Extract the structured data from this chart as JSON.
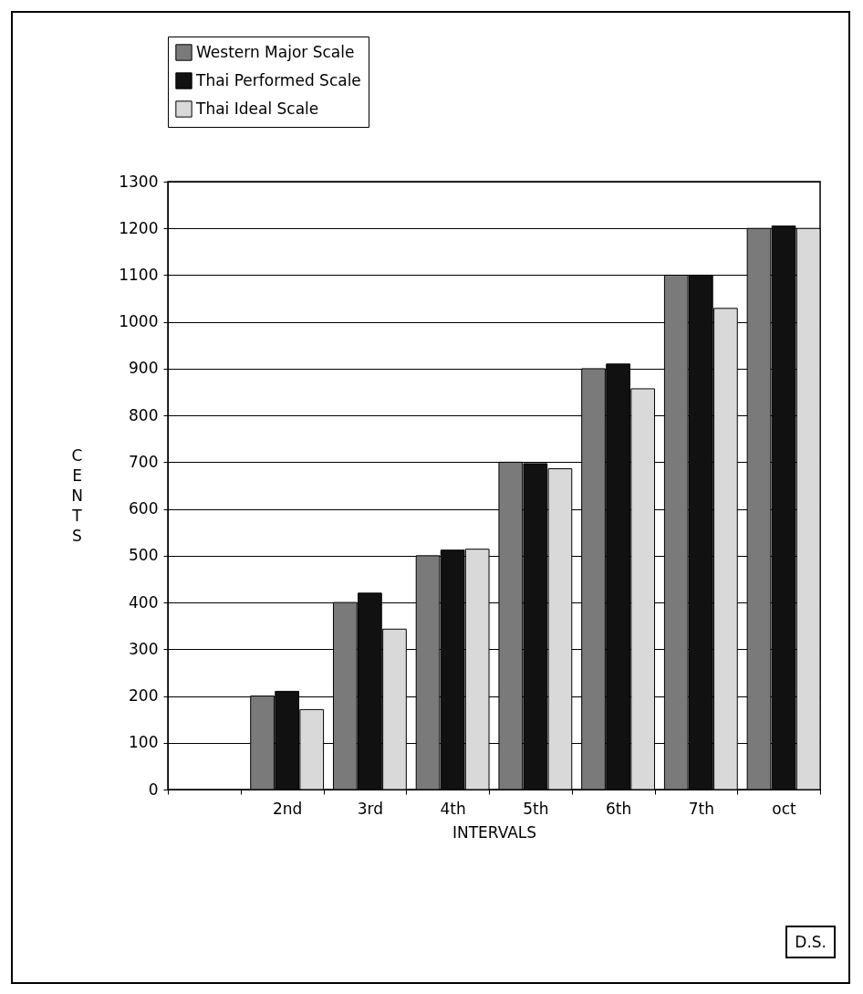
{
  "chart_data": {
    "type": "bar",
    "xlabel": "INTERVALS",
    "ylabel": "CENTS",
    "categories": [
      null,
      "2nd",
      "3rd",
      "4th",
      "5th",
      "6th",
      "7th",
      "oct"
    ],
    "series": [
      {
        "name": "Western Major Scale",
        "color": "#7a7a7a",
        "values": [
          null,
          200,
          400,
          500,
          700,
          900,
          1100,
          1200
        ]
      },
      {
        "name": "Thai Performed Scale",
        "color": "#111111",
        "values": [
          null,
          210,
          420,
          512,
          697,
          910,
          1100,
          1205
        ]
      },
      {
        "name": "Thai Ideal Scale",
        "color": "#d9d9d9",
        "values": [
          null,
          171,
          343,
          514,
          686,
          857,
          1029,
          1200
        ]
      }
    ],
    "ylim": [
      0,
      1300
    ],
    "yticks": [
      0,
      100,
      200,
      300,
      400,
      500,
      600,
      700,
      800,
      900,
      1000,
      1100,
      1200,
      1300
    ],
    "grid": "y",
    "legend": "top",
    "annotations": [
      "D.S."
    ]
  }
}
